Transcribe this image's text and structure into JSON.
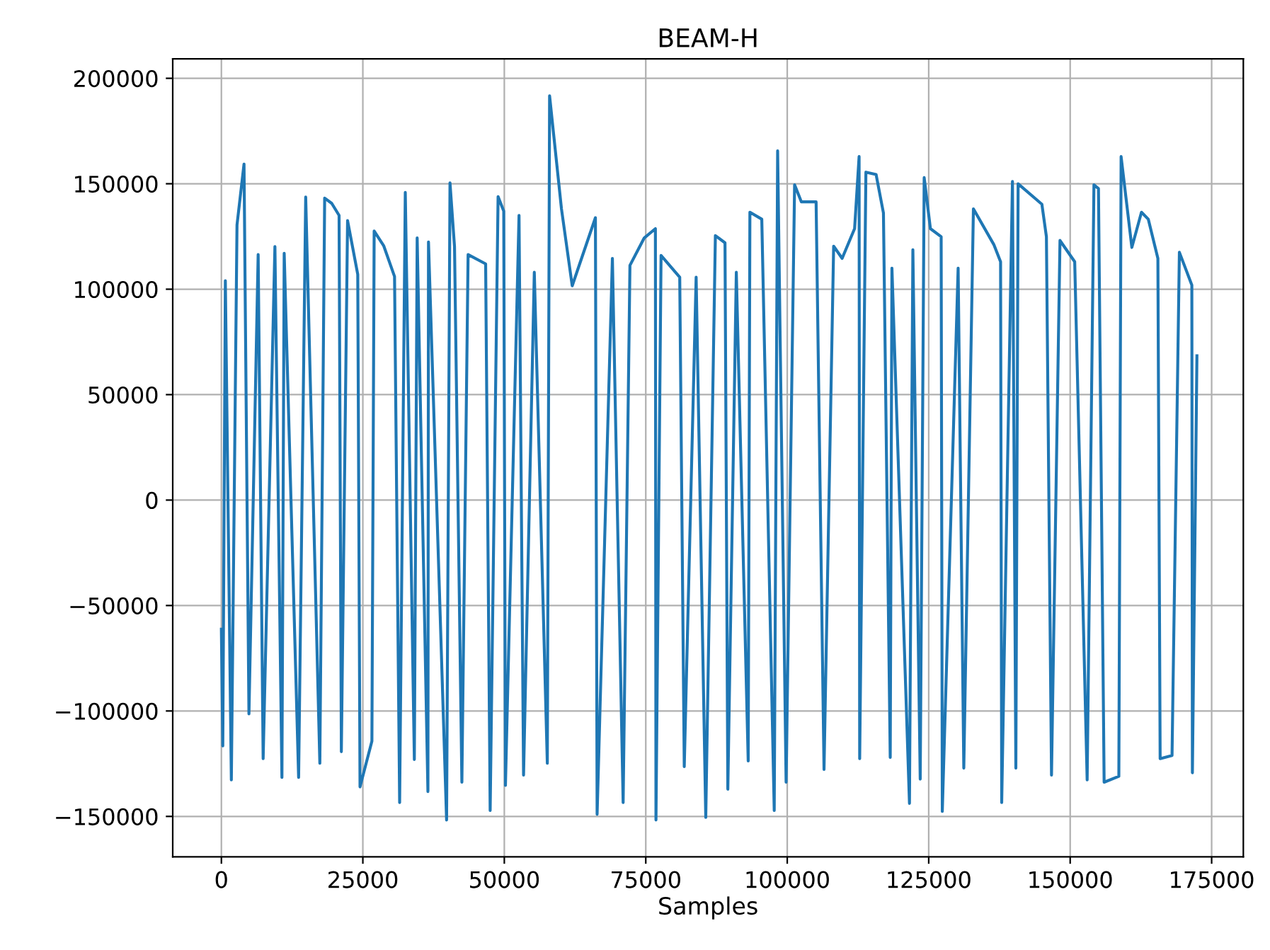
{
  "chart_data": {
    "type": "line",
    "title": "BEAM-H",
    "xlabel": "Samples",
    "xlim": [
      -8600,
      180600
    ],
    "ylim": [
      -169200,
      209200
    ],
    "xticks": [
      0,
      25000,
      50000,
      75000,
      100000,
      125000,
      150000,
      175000
    ],
    "yticks": [
      {
        "value": -150000,
        "label": "−150000"
      },
      {
        "value": -100000,
        "label": "−100000"
      },
      {
        "value": -50000,
        "label": "−50000"
      },
      0,
      50000,
      100000,
      150000,
      200000
    ],
    "grid": true,
    "series": [
      {
        "color": "#1f77b4",
        "x": [
          0,
          250,
          700,
          1760,
          2760,
          4000,
          4870,
          6500,
          7380,
          9460,
          10700,
          11100,
          13650,
          14900,
          17400,
          18250,
          19500,
          20800,
          21200,
          22300,
          24100,
          24500,
          26600,
          27000,
          28700,
          30600,
          31500,
          32500,
          34100,
          34600,
          36500,
          36600,
          39800,
          40400,
          41200,
          42500,
          43600,
          46700,
          47500,
          48900,
          49900,
          50200,
          52600,
          53400,
          55300,
          57600,
          58000,
          60100,
          62000,
          66100,
          66400,
          69100,
          71000,
          72200,
          74700,
          76700,
          76800,
          77700,
          81000,
          81800,
          83900,
          85600,
          87300,
          89000,
          89500,
          91000,
          93100,
          93400,
          95500,
          97700,
          98300,
          99800,
          101300,
          102500,
          105100,
          106500,
          108200,
          109700,
          111900,
          112700,
          112800,
          113900,
          115700,
          117000,
          118200,
          118500,
          121600,
          122200,
          123500,
          124200,
          125300,
          127200,
          127400,
          130200,
          131200,
          132900,
          136500,
          137700,
          137900,
          139800,
          140400,
          140800,
          145000,
          145800,
          146700,
          148200,
          150800,
          153000,
          154200,
          155000,
          156000,
          158600,
          159000,
          160900,
          162600,
          163800,
          165500,
          165900,
          168000,
          169300,
          171500,
          171600,
          172400
        ],
        "values": [
          -61200,
          -116600,
          104000,
          -132700,
          130500,
          159300,
          -101400,
          116400,
          -122600,
          120200,
          -131500,
          117000,
          -131500,
          143700,
          -124800,
          143200,
          140700,
          135000,
          -119300,
          132500,
          107000,
          -136000,
          -114300,
          127600,
          120500,
          106000,
          -143400,
          145900,
          -123000,
          124300,
          -138200,
          122400,
          -151700,
          150400,
          120200,
          -133800,
          116400,
          112000,
          -147200,
          143900,
          137000,
          -135300,
          135000,
          -130400,
          108000,
          -124800,
          191700,
          138100,
          101600,
          133900,
          -149000,
          114600,
          -143400,
          111300,
          124200,
          128700,
          -151700,
          116000,
          105700,
          -126400,
          105700,
          -150500,
          125400,
          122000,
          -137100,
          108000,
          -123700,
          136500,
          133200,
          -147200,
          165600,
          -133800,
          149500,
          141400,
          141400,
          -127700,
          120400,
          114600,
          128700,
          162900,
          -122600,
          155500,
          154400,
          136100,
          -122000,
          110000,
          -143800,
          118700,
          -132300,
          152900,
          128700,
          124900,
          -147600,
          110000,
          -127100,
          138100,
          121200,
          113000,
          -143400,
          151100,
          -127100,
          150000,
          140300,
          124900,
          -130400,
          123100,
          113000,
          -132700,
          149500,
          147700,
          -133800,
          -131000,
          162900,
          119800,
          136500,
          133200,
          114600,
          -122600,
          -121100,
          117500,
          101900,
          -129300,
          68400
        ]
      }
    ]
  }
}
